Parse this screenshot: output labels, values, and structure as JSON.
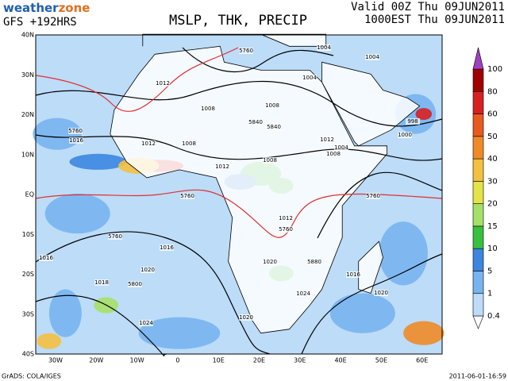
{
  "header": {
    "logo_a": "weather",
    "logo_b": "zone",
    "model": "GFS +192HRS",
    "title": "MSLP, THK, PRECIP",
    "valid_utc": "Valid 00Z Thu 09JUN2011",
    "valid_local": "1000EST Thu 09JUN2011"
  },
  "map": {
    "lat_labels": [
      "40N",
      "30N",
      "20N",
      "10N",
      "EQ",
      "10S",
      "20S",
      "30S",
      "40S"
    ],
    "lon_labels": [
      "30W",
      "20W",
      "10W",
      "0",
      "10E",
      "20E",
      "30E",
      "40E",
      "50E",
      "60E"
    ],
    "contour_labels": [
      "1004",
      "5760",
      "1012",
      "1008",
      "1004",
      "1008",
      "5840",
      "1004",
      "998",
      "5760",
      "1016",
      "1012",
      "1008",
      "5840",
      "1012",
      "1008",
      "1012",
      "5760",
      "1008",
      "1004",
      "5760",
      "1012",
      "5760",
      "5760",
      "1016",
      "1016",
      "1020",
      "5880",
      "1020",
      "5800",
      "1018",
      "1024",
      "1024",
      "1020",
      "1016",
      "1020",
      "1000"
    ]
  },
  "colorbar": {
    "levels": [
      0.4,
      1,
      5,
      10,
      15,
      20,
      30,
      40,
      50,
      60,
      80,
      100
    ],
    "colors": [
      "#ffffff",
      "#bcdcf8",
      "#78b4f0",
      "#3c86e0",
      "#38c040",
      "#a6e068",
      "#e4e448",
      "#f4c040",
      "#f08a28",
      "#e85a20",
      "#d82020",
      "#a00000",
      "#a040c0"
    ]
  },
  "footer": {
    "left": "GrADS: COLA/IGES",
    "right": "2011-06-01-16:59"
  }
}
